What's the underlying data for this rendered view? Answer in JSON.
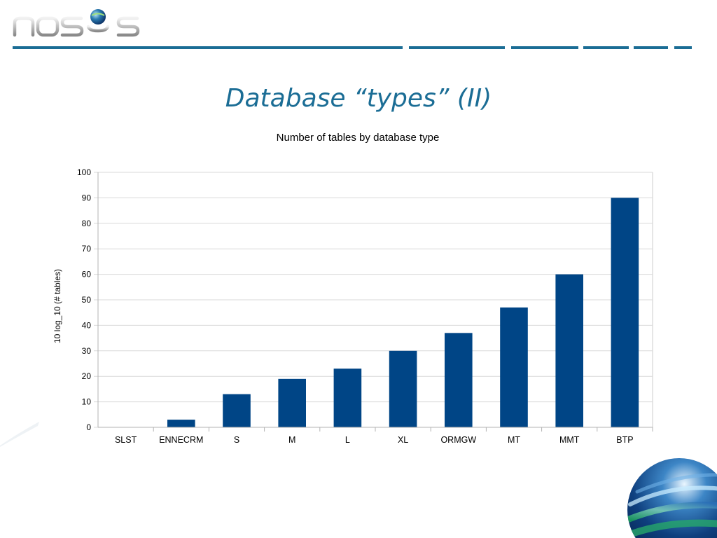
{
  "brand": {
    "logo_text": "nosys",
    "accent": "#1b6d95",
    "bar_color": "#004586"
  },
  "slide": {
    "title": "Database “types” (II)"
  },
  "chart_data": {
    "type": "bar",
    "title": "Number of tables by database type",
    "xlabel": "",
    "ylabel": "10 log_10 (# tables)",
    "categories": [
      "SLST",
      "ENNECRM",
      "S",
      "M",
      "L",
      "XL",
      "ORMGW",
      "MT",
      "MMT",
      "BTP"
    ],
    "values": [
      0,
      3,
      13,
      19,
      23,
      30,
      37,
      47,
      60,
      90
    ],
    "ylim": [
      0,
      100
    ],
    "yticks": [
      0,
      10,
      20,
      30,
      40,
      50,
      60,
      70,
      80,
      90,
      100
    ],
    "grid": true,
    "legend": "none"
  }
}
